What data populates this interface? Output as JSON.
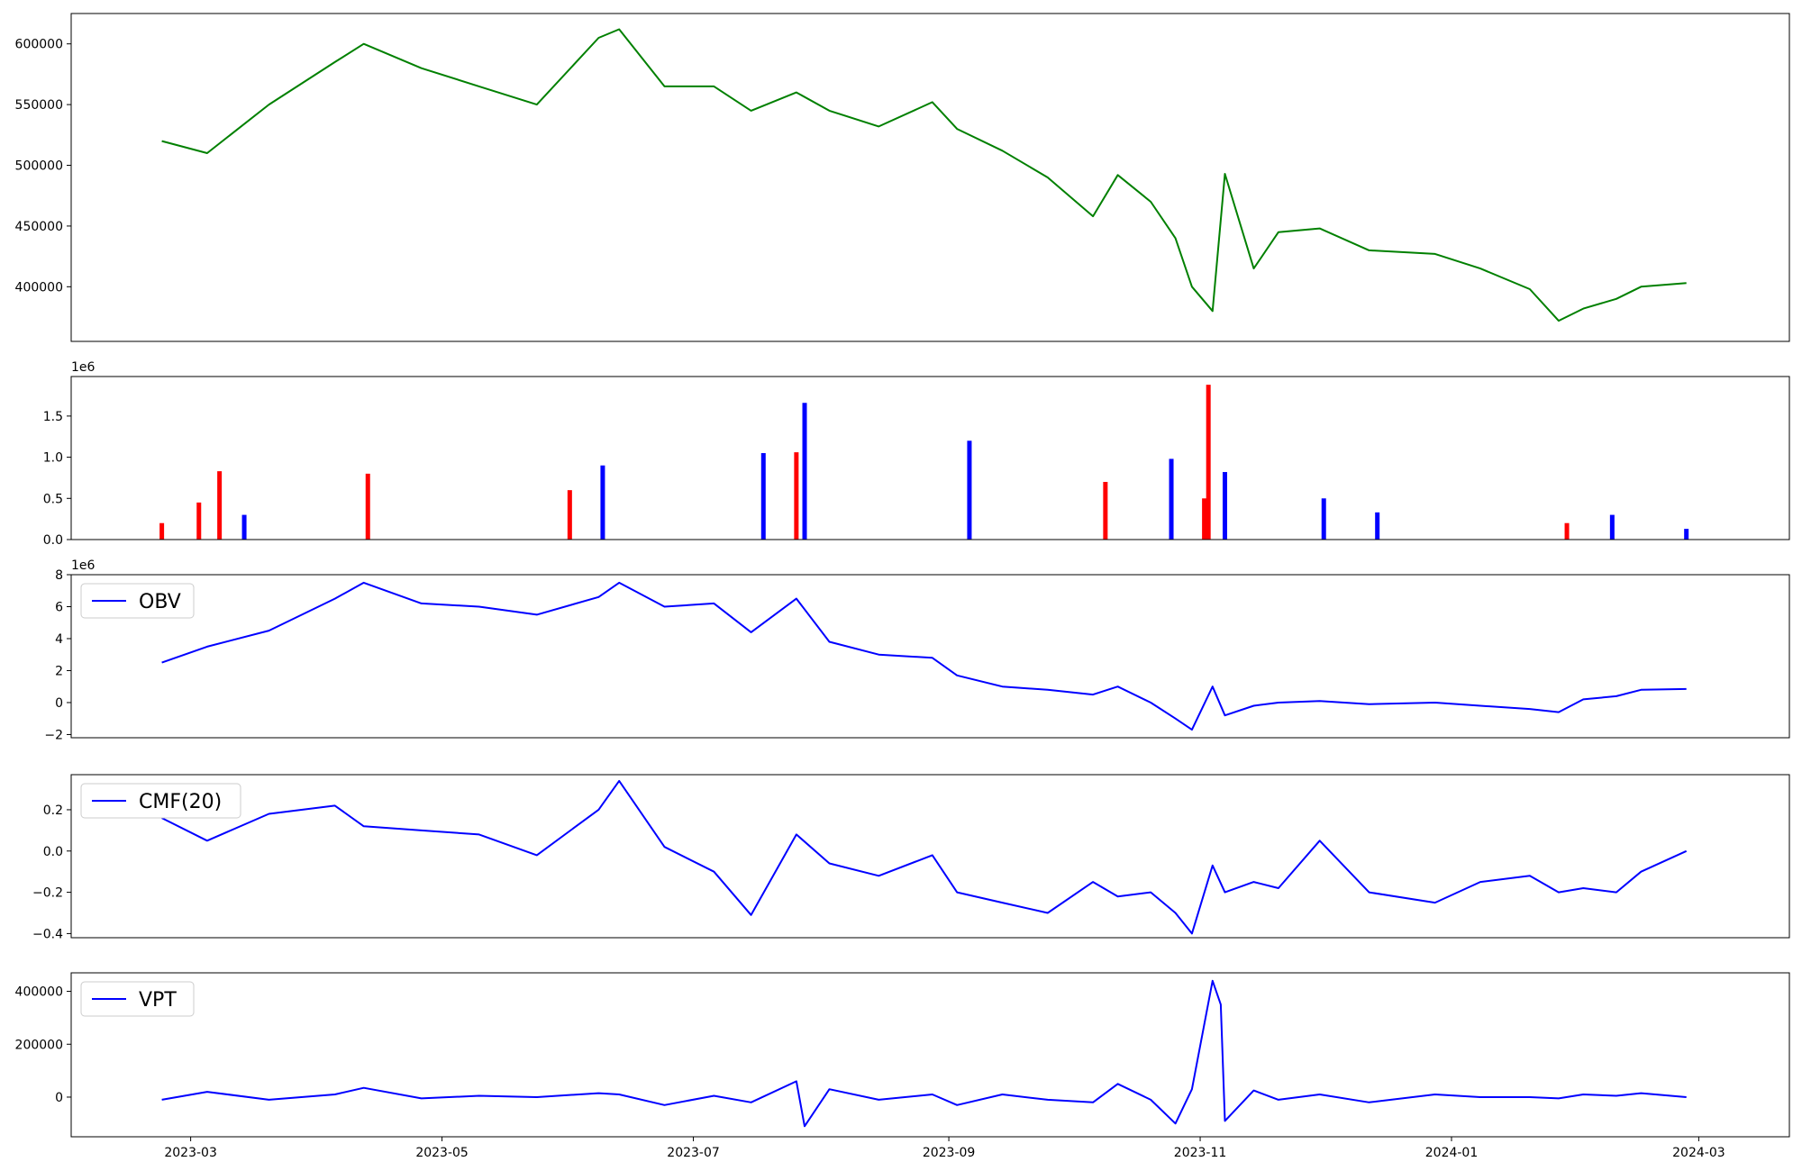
{
  "chart_data": [
    {
      "id": "price",
      "type": "line",
      "x": [
        "2023-02-22",
        "2023-03-05",
        "2023-03-20",
        "2023-04-05",
        "2023-04-12",
        "2023-04-26",
        "2023-05-10",
        "2023-05-24",
        "2023-06-08",
        "2023-06-13",
        "2023-06-24",
        "2023-07-06",
        "2023-07-15",
        "2023-07-26",
        "2023-08-03",
        "2023-08-15",
        "2023-08-28",
        "2023-09-03",
        "2023-09-14",
        "2023-09-25",
        "2023-10-06",
        "2023-10-12",
        "2023-10-20",
        "2023-10-26",
        "2023-10-30",
        "2023-11-04",
        "2023-11-07",
        "2023-11-14",
        "2023-11-20",
        "2023-11-30",
        "2023-12-12",
        "2023-12-28",
        "2024-01-08",
        "2024-01-20",
        "2024-01-27",
        "2024-02-02",
        "2024-02-10",
        "2024-02-16",
        "2024-02-27"
      ],
      "values": [
        520000,
        510000,
        550000,
        585000,
        600000,
        580000,
        565000,
        550000,
        605000,
        612000,
        565000,
        565000,
        545000,
        560000,
        545000,
        532000,
        552000,
        530000,
        512000,
        490000,
        458000,
        492000,
        470000,
        440000,
        400000,
        380000,
        493000,
        415000,
        445000,
        448000,
        430000,
        427000,
        415000,
        398000,
        372000,
        382000,
        390000,
        400000,
        403000
      ],
      "series_name": "",
      "color": "#008000",
      "ylim": [
        355000,
        625000
      ],
      "yticks": [
        "400000",
        "450000",
        "500000",
        "550000",
        "600000"
      ],
      "ytick_values": [
        400000,
        450000,
        500000,
        550000,
        600000
      ]
    },
    {
      "id": "volume",
      "type": "bar",
      "x": [
        "2023-02-22",
        "2023-03-03",
        "2023-03-08",
        "2023-03-14",
        "2023-04-13",
        "2023-06-01",
        "2023-06-09",
        "2023-07-18",
        "2023-07-26",
        "2023-07-28",
        "2023-09-06",
        "2023-10-09",
        "2023-10-25",
        "2023-11-02",
        "2023-11-03",
        "2023-11-07",
        "2023-12-01",
        "2023-12-14",
        "2024-01-29",
        "2024-02-09",
        "2024-02-27"
      ],
      "values": [
        200000,
        450000,
        830000,
        300000,
        800000,
        600000,
        900000,
        1050000,
        1060000,
        1660000,
        1200000,
        700000,
        980000,
        500000,
        1880000,
        820000,
        500000,
        330000,
        200000,
        300000,
        130000
      ],
      "colors": [
        "#ff0000",
        "#ff0000",
        "#ff0000",
        "#0000ff",
        "#ff0000",
        "#ff0000",
        "#0000ff",
        "#0000ff",
        "#ff0000",
        "#0000ff",
        "#0000ff",
        "#ff0000",
        "#0000ff",
        "#ff0000",
        "#ff0000",
        "#0000ff",
        "#0000ff",
        "#0000ff",
        "#ff0000",
        "#0000ff",
        "#0000ff"
      ],
      "ylim": [
        0,
        1980000
      ],
      "offset_text": "1e6",
      "yticks": [
        "0.0",
        "0.5",
        "1.0",
        "1.5"
      ],
      "ytick_values": [
        0,
        500000,
        1000000,
        1500000
      ]
    },
    {
      "id": "obv",
      "type": "line",
      "x": [
        "2023-02-22",
        "2023-03-05",
        "2023-03-20",
        "2023-04-05",
        "2023-04-12",
        "2023-04-26",
        "2023-05-10",
        "2023-05-24",
        "2023-06-08",
        "2023-06-13",
        "2023-06-24",
        "2023-07-06",
        "2023-07-15",
        "2023-07-26",
        "2023-08-03",
        "2023-08-15",
        "2023-08-28",
        "2023-09-03",
        "2023-09-14",
        "2023-09-25",
        "2023-10-06",
        "2023-10-12",
        "2023-10-20",
        "2023-10-26",
        "2023-10-30",
        "2023-11-04",
        "2023-11-07",
        "2023-11-14",
        "2023-11-20",
        "2023-11-30",
        "2023-12-12",
        "2023-12-28",
        "2024-01-08",
        "2024-01-20",
        "2024-01-27",
        "2024-02-02",
        "2024-02-10",
        "2024-02-16",
        "2024-02-27"
      ],
      "values": [
        2500000,
        3500000,
        4500000,
        6500000,
        7500000,
        6200000,
        6000000,
        5500000,
        6600000,
        7500000,
        6000000,
        6200000,
        4400000,
        6500000,
        3800000,
        3000000,
        2800000,
        1700000,
        1000000,
        800000,
        500000,
        1000000,
        0,
        -1000000,
        -1700000,
        1000000,
        -800000,
        -200000,
        0,
        100000,
        -100000,
        0,
        -200000,
        -400000,
        -600000,
        200000,
        400000,
        800000,
        850000
      ],
      "series_name": "OBV",
      "color": "#0000ff",
      "ylim": [
        -2200000,
        8000000
      ],
      "offset_text": "1e6",
      "yticks": [
        "−2",
        "0",
        "2",
        "4",
        "6",
        "8"
      ],
      "ytick_values": [
        -2000000,
        0,
        2000000,
        4000000,
        6000000,
        8000000
      ]
    },
    {
      "id": "cmf",
      "type": "line",
      "x": [
        "2023-02-22",
        "2023-03-05",
        "2023-03-20",
        "2023-04-05",
        "2023-04-12",
        "2023-04-26",
        "2023-05-10",
        "2023-05-24",
        "2023-06-08",
        "2023-06-13",
        "2023-06-24",
        "2023-07-06",
        "2023-07-15",
        "2023-07-26",
        "2023-08-03",
        "2023-08-15",
        "2023-08-28",
        "2023-09-03",
        "2023-09-14",
        "2023-09-25",
        "2023-10-06",
        "2023-10-12",
        "2023-10-20",
        "2023-10-26",
        "2023-10-30",
        "2023-11-04",
        "2023-11-07",
        "2023-11-14",
        "2023-11-20",
        "2023-11-30",
        "2023-12-12",
        "2023-12-28",
        "2024-01-08",
        "2024-01-20",
        "2024-01-27",
        "2024-02-02",
        "2024-02-10",
        "2024-02-16",
        "2024-02-27"
      ],
      "values": [
        0.16,
        0.05,
        0.18,
        0.22,
        0.12,
        0.1,
        0.08,
        -0.02,
        0.2,
        0.34,
        0.02,
        -0.1,
        -0.31,
        0.08,
        -0.06,
        -0.12,
        -0.02,
        -0.2,
        -0.25,
        -0.3,
        -0.15,
        -0.22,
        -0.2,
        -0.3,
        -0.4,
        -0.07,
        -0.2,
        -0.15,
        -0.18,
        0.05,
        -0.2,
        -0.25,
        -0.15,
        -0.12,
        -0.2,
        -0.18,
        -0.2,
        -0.1,
        0.0
      ],
      "series_name": "CMF(20)",
      "color": "#0000ff",
      "ylim": [
        -0.42,
        0.37
      ],
      "yticks": [
        "−0.4",
        "−0.2",
        "0.0",
        "0.2"
      ],
      "ytick_values": [
        -0.4,
        -0.2,
        0.0,
        0.2
      ]
    },
    {
      "id": "vpt",
      "type": "line",
      "x": [
        "2023-02-22",
        "2023-03-05",
        "2023-03-20",
        "2023-04-05",
        "2023-04-12",
        "2023-04-26",
        "2023-05-10",
        "2023-05-24",
        "2023-06-08",
        "2023-06-13",
        "2023-06-24",
        "2023-07-06",
        "2023-07-15",
        "2023-07-26",
        "2023-07-28",
        "2023-08-03",
        "2023-08-15",
        "2023-08-28",
        "2023-09-03",
        "2023-09-14",
        "2023-09-25",
        "2023-10-06",
        "2023-10-12",
        "2023-10-20",
        "2023-10-26",
        "2023-10-30",
        "2023-11-04",
        "2023-11-06",
        "2023-11-07",
        "2023-11-14",
        "2023-11-20",
        "2023-11-30",
        "2023-12-12",
        "2023-12-28",
        "2024-01-08",
        "2024-01-20",
        "2024-01-27",
        "2024-02-02",
        "2024-02-10",
        "2024-02-16",
        "2024-02-27"
      ],
      "values": [
        -10000,
        20000,
        -10000,
        10000,
        35000,
        -5000,
        5000,
        0,
        15000,
        10000,
        -30000,
        5000,
        -20000,
        60000,
        -110000,
        30000,
        -10000,
        10000,
        -30000,
        10000,
        -10000,
        -20000,
        50000,
        -10000,
        -100000,
        30000,
        440000,
        350000,
        -90000,
        25000,
        -10000,
        10000,
        -20000,
        10000,
        0,
        0,
        -5000,
        10000,
        5000,
        15000,
        0
      ],
      "series_name": "VPT",
      "color": "#0000ff",
      "ylim": [
        -150000,
        470000
      ],
      "yticks": [
        "0",
        "200000",
        "400000"
      ],
      "ytick_values": [
        0,
        200000,
        400000
      ]
    }
  ],
  "xaxis": {
    "range": [
      "2023-01-31",
      "2024-03-23"
    ],
    "ticks": [
      "2023-03",
      "2023-05",
      "2023-07",
      "2023-09",
      "2023-11",
      "2024-01",
      "2024-03"
    ],
    "tick_dates": [
      "2023-03-01",
      "2023-05-01",
      "2023-07-01",
      "2023-09-01",
      "2023-11-01",
      "2024-01-01",
      "2024-03-01"
    ]
  }
}
